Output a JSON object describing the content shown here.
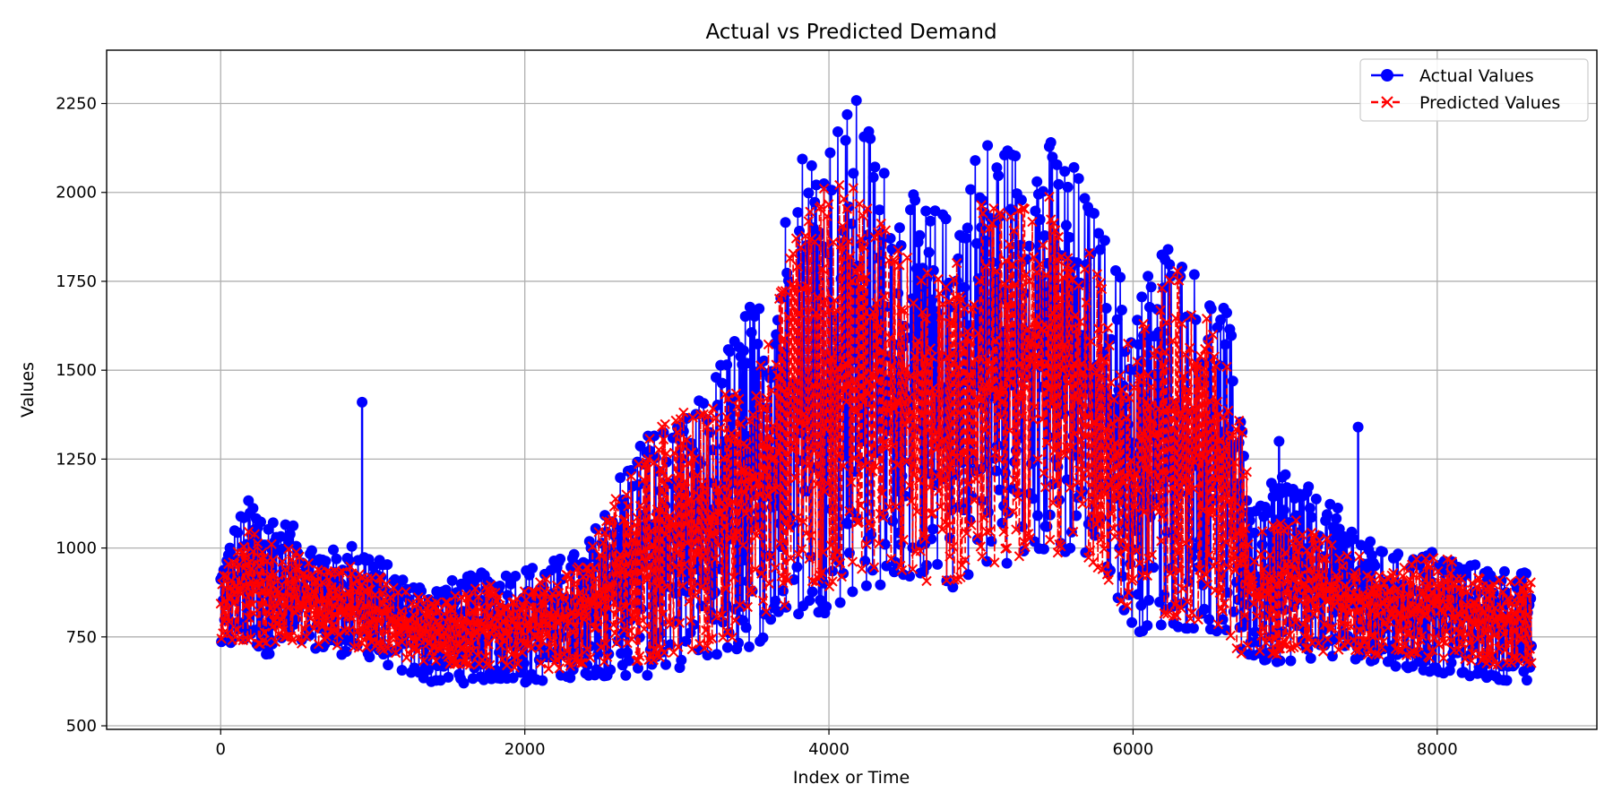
{
  "chart_data": {
    "type": "line",
    "title": "Actual vs Predicted Demand",
    "xlabel": "Index or Time",
    "ylabel": "Values",
    "xlim": [
      -750,
      9050
    ],
    "ylim": [
      490,
      2400
    ],
    "xticks": [
      0,
      2000,
      4000,
      6000,
      8000
    ],
    "yticks": [
      500,
      750,
      1000,
      1250,
      1500,
      1750,
      2000,
      2250
    ],
    "grid": true,
    "legend_position": "top-right",
    "n_points": 8640,
    "series": [
      {
        "name": "Actual Values",
        "color": "#0000ff",
        "marker": "circle",
        "linestyle": "solid",
        "envelope": {
          "x": [
            0,
            100,
            200,
            300,
            400,
            600,
            800,
            900,
            1000,
            1200,
            1400,
            1600,
            1800,
            2000,
            2200,
            2400,
            2600,
            2800,
            3000,
            3200,
            3400,
            3600,
            3800,
            4000,
            4200,
            4400,
            4600,
            4800,
            5000,
            5200,
            5400,
            5600,
            5800,
            6000,
            6200,
            6400,
            6600,
            6700,
            6800,
            7000,
            7200,
            7400,
            7600,
            7800,
            8000,
            8200,
            8400,
            8620
          ],
          "upper": [
            950,
            1080,
            1150,
            1120,
            1090,
            1020,
            990,
            1030,
            990,
            920,
            900,
            920,
            940,
            950,
            970,
            1000,
            1200,
            1350,
            1340,
            1450,
            1650,
            1750,
            2150,
            2200,
            2280,
            2050,
            1980,
            1950,
            2180,
            2150,
            2180,
            2100,
            1900,
            1700,
            1900,
            1800,
            1700,
            1500,
            1100,
            1250,
            1150,
            1100,
            1000,
            980,
            1000,
            960,
            950,
            930
          ],
          "lower": [
            710,
            720,
            730,
            700,
            710,
            720,
            700,
            700,
            690,
            650,
            620,
            620,
            630,
            620,
            630,
            640,
            640,
            640,
            660,
            690,
            700,
            750,
            800,
            820,
            880,
            900,
            920,
            880,
            940,
            960,
            980,
            980,
            960,
            760,
            780,
            770,
            760,
            700,
            680,
            680,
            690,
            690,
            680,
            660,
            650,
            640,
            630,
            620
          ]
        },
        "outliers": [
          {
            "x": 930,
            "y": 1410
          },
          {
            "x": 7480,
            "y": 1340
          },
          {
            "x": 6960,
            "y": 1300
          }
        ]
      },
      {
        "name": "Predicted Values",
        "color": "#ff0000",
        "marker": "x",
        "linestyle": "dashed",
        "envelope": {
          "x": [
            0,
            100,
            200,
            300,
            400,
            600,
            800,
            900,
            1000,
            1200,
            1400,
            1600,
            1800,
            2000,
            2200,
            2400,
            2600,
            2800,
            3000,
            3200,
            3400,
            3600,
            3800,
            4000,
            4200,
            4400,
            4600,
            4800,
            5000,
            5200,
            5400,
            5600,
            5800,
            6000,
            6200,
            6400,
            6600,
            6700,
            6800,
            7000,
            7200,
            7400,
            7600,
            7800,
            8000,
            8200,
            8400,
            8620
          ],
          "upper": [
            900,
            1020,
            1060,
            1040,
            1020,
            960,
            940,
            960,
            930,
            880,
            860,
            880,
            900,
            900,
            920,
            980,
            1150,
            1300,
            1400,
            1380,
            1500,
            1600,
            1900,
            2050,
            2050,
            1880,
            1800,
            1760,
            1980,
            1950,
            2000,
            1950,
            1750,
            1550,
            1850,
            1720,
            1560,
            1400,
            1050,
            1100,
            1050,
            1000,
            960,
            950,
            1010,
            920,
            920,
            910
          ],
          "lower": [
            740,
            740,
            740,
            720,
            720,
            730,
            720,
            720,
            710,
            690,
            670,
            670,
            670,
            660,
            660,
            670,
            680,
            680,
            700,
            720,
            740,
            800,
            870,
            880,
            920,
            920,
            910,
            890,
            950,
            970,
            990,
            970,
            940,
            790,
            800,
            800,
            780,
            680,
            700,
            700,
            710,
            700,
            700,
            690,
            690,
            680,
            670,
            670
          ]
        }
      }
    ]
  }
}
